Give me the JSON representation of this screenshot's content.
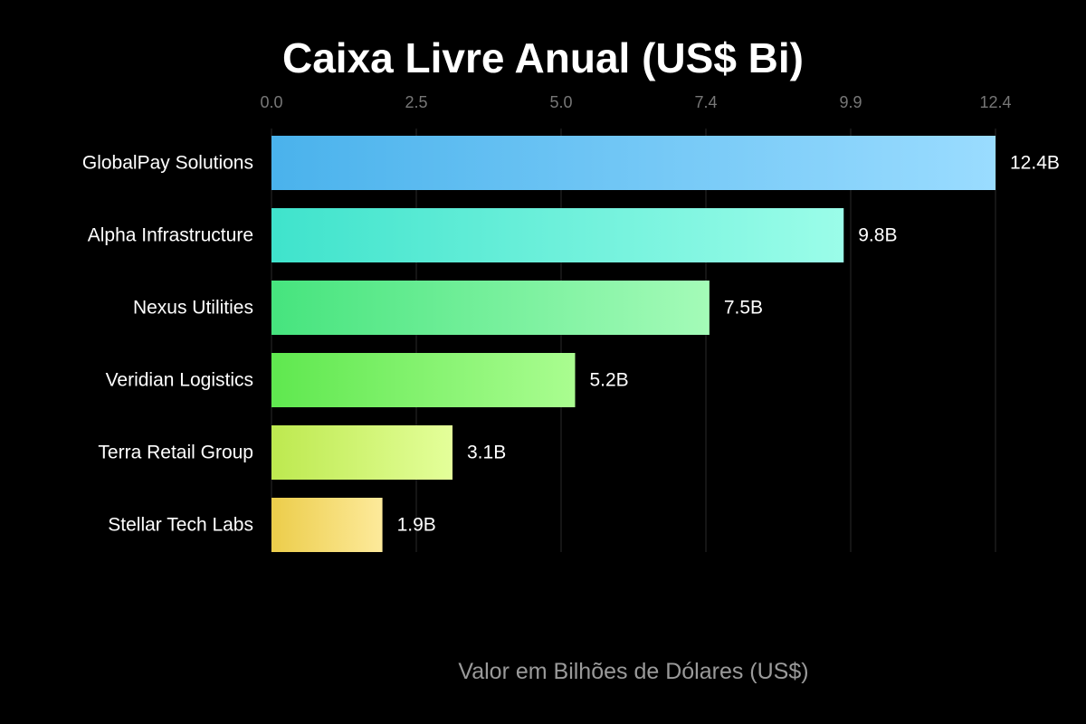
{
  "chart_data": {
    "type": "bar",
    "orientation": "horizontal",
    "title": "Caixa Livre Anual (US$ Bi)",
    "xlabel": "Valor em Bilhões de Dólares (US$)",
    "ylabel": "",
    "xlim": [
      0,
      12.4
    ],
    "ticks": [
      "0.0",
      "2.5",
      "5.0",
      "7.4",
      "9.9",
      "12.4"
    ],
    "tick_values": [
      0,
      2.48,
      4.96,
      7.44,
      9.92,
      12.4
    ],
    "grid": true,
    "categories": [
      "GlobalPay Solutions",
      "Alpha Infrastructure",
      "Nexus Utilities",
      "Veridian Logistics",
      "Terra Retail Group",
      "Stellar Tech Labs"
    ],
    "values": [
      12.4,
      9.8,
      7.5,
      5.2,
      3.1,
      1.9
    ],
    "value_labels": [
      "12.4B",
      "9.8B",
      "7.5B",
      "5.2B",
      "3.1B",
      "1.9B"
    ],
    "colors": [
      [
        "#4ab2ec",
        "#9adcff"
      ],
      [
        "#3fe3cc",
        "#9bfde9"
      ],
      [
        "#46e47e",
        "#a4fbb8"
      ],
      [
        "#5fe84f",
        "#aafd90"
      ],
      [
        "#bde94f",
        "#e4ff9a"
      ],
      [
        "#eccd4a",
        "#fdea9b"
      ]
    ]
  }
}
